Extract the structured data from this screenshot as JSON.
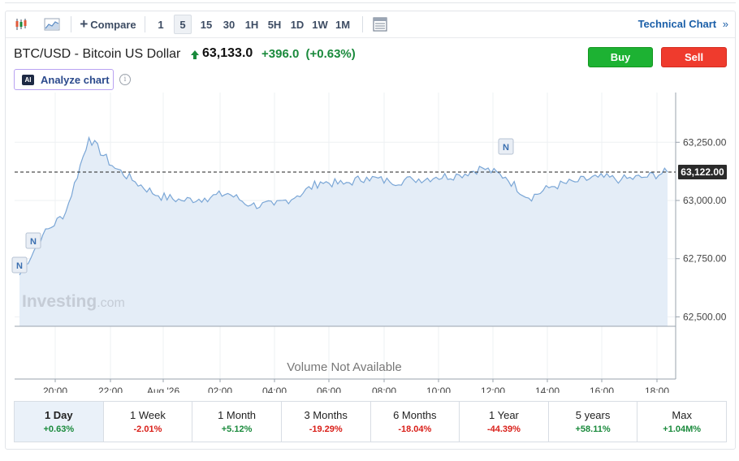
{
  "toolbar": {
    "compare_label": "Compare",
    "intervals": [
      "1",
      "5",
      "15",
      "30",
      "1H",
      "5H",
      "1D",
      "1W",
      "1M"
    ],
    "selected_interval": "5",
    "technical_label": "Technical Chart",
    "technical_chevron": "»"
  },
  "header": {
    "title": "BTC/USD - Bitcoin US Dollar",
    "price": "63,133.0",
    "change": "+396.0",
    "change_pct": "(+0.63%)",
    "buy_label": "Buy",
    "sell_label": "Sell",
    "analyze_label": "Analyze chart",
    "ai_badge": "AI",
    "info_glyph": "i"
  },
  "colors": {
    "positive": "#1a8a3c",
    "negative": "#d91e18",
    "line": "#7aa6d6",
    "area": "#e4edf7",
    "buy": "#1db233",
    "sell": "#ef3b2d"
  },
  "chart_data": {
    "type": "area",
    "y_ticks": [
      "63,250.00",
      "63,000.00",
      "62,750.00",
      "62,500.00"
    ],
    "y_tick_values": [
      63250,
      63000,
      62750,
      62500
    ],
    "x_ticks": [
      "20:00",
      "22:00",
      "Aug '26",
      "02:00",
      "04:00",
      "06:00",
      "08:00",
      "10:00",
      "12:00",
      "14:00",
      "16:00",
      "18:00"
    ],
    "current_value": 63122,
    "current_label": "63,122.00",
    "news_markers": [
      "N",
      "N",
      "N"
    ],
    "volume_label": "Volume Not Available",
    "watermark": "Investing",
    "watermark_suffix": ".com",
    "grid": true,
    "x": [
      "19:00",
      "20:00",
      "21:00",
      "21:20",
      "21:40",
      "22:00",
      "23:00",
      "Aug '26",
      "01:00",
      "02:00",
      "03:00",
      "04:00",
      "05:00",
      "06:00",
      "07:00",
      "08:00",
      "09:00",
      "10:00",
      "11:00",
      "12:00",
      "12:30",
      "13:00",
      "13:30",
      "14:00",
      "15:00",
      "16:00",
      "17:00",
      "18:00",
      "18:30"
    ],
    "values": [
      62680,
      62850,
      62950,
      63270,
      63150,
      63080,
      63020,
      63000,
      63010,
      63030,
      62980,
      62980,
      63020,
      63080,
      63070,
      63100,
      63080,
      63090,
      63100,
      63110,
      63140,
      63100,
      63010,
      63060,
      63080,
      63100,
      63090,
      63100,
      63122
    ]
  },
  "ranges": [
    {
      "label": "1 Day",
      "value": "+0.63%",
      "positive": true,
      "selected": true
    },
    {
      "label": "1 Week",
      "value": "-2.01%",
      "positive": false,
      "selected": false
    },
    {
      "label": "1 Month",
      "value": "+5.12%",
      "positive": true,
      "selected": false
    },
    {
      "label": "3 Months",
      "value": "-19.29%",
      "positive": false,
      "selected": false
    },
    {
      "label": "6 Months",
      "value": "-18.04%",
      "positive": false,
      "selected": false
    },
    {
      "label": "1 Year",
      "value": "-44.39%",
      "positive": false,
      "selected": false
    },
    {
      "label": "5 years",
      "value": "+58.11%",
      "positive": true,
      "selected": false
    },
    {
      "label": "Max",
      "value": "+1.04M%",
      "positive": true,
      "selected": false
    }
  ]
}
